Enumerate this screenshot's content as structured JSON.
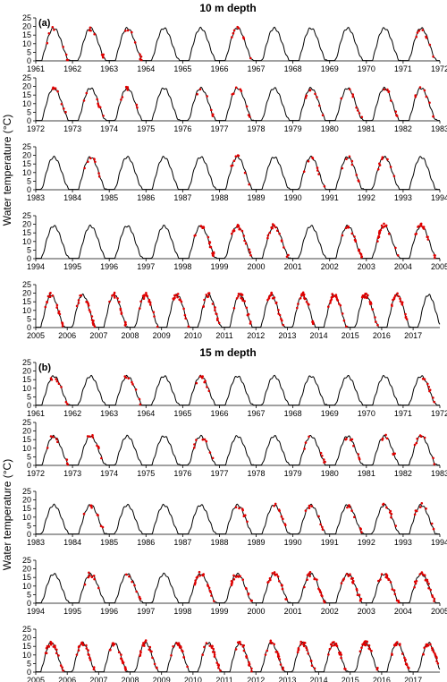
{
  "panel_a": {
    "label": "(a)",
    "title": "10 m depth"
  },
  "panel_b": {
    "label": "(b)",
    "title": "15 m depth"
  },
  "ylabel": "Water temperature (°C)",
  "colors": {
    "model": "#000000",
    "observed": "#e00000",
    "axis": "#000000"
  },
  "chart_data": [
    {
      "type": "line",
      "panel": "a",
      "title": "10 m depth",
      "xlabel": "",
      "ylabel": "Water temperature (°C)",
      "ylim": [
        0,
        25
      ],
      "yticks": [
        0,
        5,
        10,
        15,
        20,
        25
      ],
      "grid": false,
      "legend": "none",
      "series": [
        {
          "role": "model",
          "style": "black line",
          "annual_peak": 19
        },
        {
          "role": "observed",
          "style": "red points",
          "observed_years": [
            1961,
            1962,
            1963,
            1966,
            1971,
            1972,
            1973,
            1974,
            1976,
            1977,
            1979,
            1980,
            1981,
            1982,
            1984,
            1988,
            1990,
            1991,
            1992,
            1998,
            1999,
            2000,
            2002,
            2003,
            2004,
            2005,
            2006,
            2007,
            2008,
            2009,
            2010,
            2011,
            2012,
            2013,
            2014,
            2015,
            2016
          ]
        }
      ],
      "rows": [
        {
          "years": [
            1961,
            1962,
            1963,
            1964,
            1965,
            1966,
            1967,
            1968,
            1969,
            1970,
            1971,
            1972
          ]
        },
        {
          "years": [
            1972,
            1973,
            1974,
            1975,
            1976,
            1977,
            1978,
            1979,
            1980,
            1981,
            1982,
            1983
          ]
        },
        {
          "years": [
            1983,
            1984,
            1985,
            1986,
            1987,
            1988,
            1989,
            1990,
            1991,
            1992,
            1993,
            1994
          ]
        },
        {
          "years": [
            1994,
            1995,
            1996,
            1997,
            1998,
            1999,
            2000,
            2001,
            2002,
            2003,
            2004,
            2005
          ]
        },
        {
          "years": [
            2005,
            2006,
            2007,
            2008,
            2009,
            2010,
            2011,
            2012,
            2013,
            2014,
            2015,
            2016,
            2017
          ]
        }
      ]
    },
    {
      "type": "line",
      "panel": "b",
      "title": "15 m depth",
      "xlabel": "",
      "ylabel": "Water temperature (°C)",
      "ylim": [
        0,
        25
      ],
      "yticks": [
        0,
        5,
        10,
        15,
        20,
        25
      ],
      "grid": false,
      "legend": "none",
      "series": [
        {
          "role": "model",
          "style": "black line",
          "annual_peak": 17
        },
        {
          "role": "observed",
          "style": "red points",
          "observed_years": [
            1961,
            1963,
            1965,
            1971,
            1972,
            1973,
            1976,
            1979,
            1980,
            1981,
            1982,
            1984,
            1988,
            1989,
            1990,
            1991,
            1992,
            1993,
            1995,
            1996,
            1998,
            1999,
            2000,
            2001,
            2002,
            2003,
            2004,
            2005,
            2006,
            2007,
            2008,
            2009,
            2010,
            2011,
            2012,
            2013,
            2014,
            2015,
            2016,
            2017
          ]
        }
      ],
      "rows": [
        {
          "years": [
            1961,
            1962,
            1963,
            1964,
            1965,
            1966,
            1967,
            1968,
            1969,
            1970,
            1971,
            1972
          ]
        },
        {
          "years": [
            1972,
            1973,
            1974,
            1975,
            1976,
            1977,
            1978,
            1979,
            1980,
            1981,
            1982,
            1983
          ]
        },
        {
          "years": [
            1983,
            1984,
            1985,
            1986,
            1987,
            1988,
            1989,
            1990,
            1991,
            1992,
            1993,
            1994
          ]
        },
        {
          "years": [
            1994,
            1995,
            1996,
            1997,
            1998,
            1999,
            2000,
            2001,
            2002,
            2003,
            2004,
            2005
          ]
        },
        {
          "years": [
            2005,
            2006,
            2007,
            2008,
            2009,
            2010,
            2011,
            2012,
            2013,
            2014,
            2015,
            2016,
            2017
          ]
        }
      ]
    }
  ]
}
